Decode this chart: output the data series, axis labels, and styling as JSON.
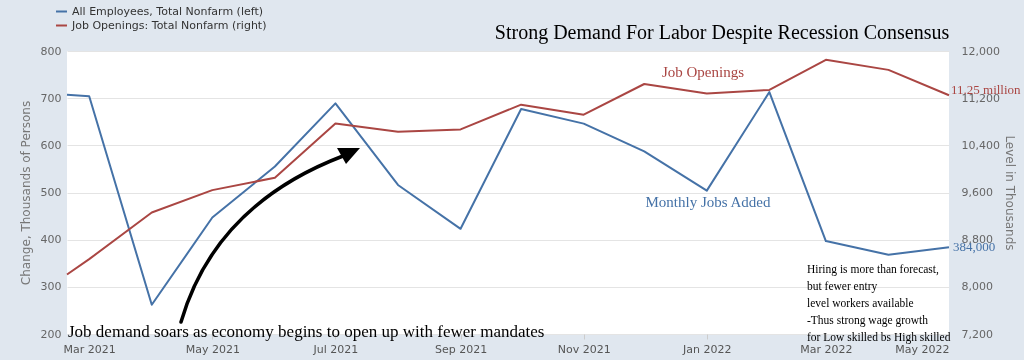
{
  "chart_data": {
    "type": "line",
    "title": "Strong Demand For Labor Despite Recession Consensus",
    "xlabel": null,
    "ylabel": "Change, Thousands of Persons",
    "y2label": "Level in Thousands",
    "x": [
      "2021-02-18",
      "2021-03-01",
      "2021-04-01",
      "2021-05-01",
      "2021-06-01",
      "2021-07-01",
      "2021-08-01",
      "2021-09-01",
      "2021-10-01",
      "2021-11-01",
      "2021-12-01",
      "2022-01-01",
      "2022-02-01",
      "2022-03-01",
      "2022-04-01",
      "2022-05-01"
    ],
    "series": [
      {
        "name": "All Employees, Total Nonfarm (left)",
        "color": "#4572a7",
        "values": [
          707,
          704,
          262,
          447,
          555,
          689,
          516,
          423,
          677,
          646,
          587,
          504,
          713,
          397,
          368,
          384
        ]
      },
      {
        "name": "Job Openings: Total Nonfarm (right)",
        "color": "#aa4643",
        "axis": "y2",
        "values": [
          8210,
          8470,
          9260,
          9640,
          9850,
          10770,
          10630,
          10670,
          11090,
          10920,
          11440,
          11280,
          11340,
          11850,
          11680,
          11250
        ]
      }
    ],
    "xlim": [
      "2021-02-18",
      "2022-05-01"
    ],
    "xticks": [
      {
        "value": "2021-03-01",
        "label": "Mar 2021"
      },
      {
        "value": "2021-05-01",
        "label": "May 2021"
      },
      {
        "value": "2021-07-01",
        "label": "Jul 2021"
      },
      {
        "value": "2021-09-01",
        "label": "Sep 2021"
      },
      {
        "value": "2021-11-01",
        "label": "Nov 2021"
      },
      {
        "value": "2022-01-01",
        "label": "Jan 2022"
      },
      {
        "value": "2022-03-01",
        "label": "Mar 2022"
      },
      {
        "value": "2022-05-01",
        "label": "May 2022"
      }
    ],
    "ylim": [
      200,
      800
    ],
    "yticks": [
      200,
      300,
      400,
      500,
      600,
      700,
      800
    ],
    "y2lim": [
      7200,
      12000
    ],
    "y2ticks": [
      {
        "value": 7200,
        "label": "7,200"
      },
      {
        "value": 8000,
        "label": "8,000"
      },
      {
        "value": 8800,
        "label": "8,800"
      },
      {
        "value": 9600,
        "label": "9,600"
      },
      {
        "value": 10400,
        "label": "10,400"
      },
      {
        "value": 11200,
        "label": "11,200"
      },
      {
        "value": 12000,
        "label": "12,000"
      }
    ],
    "grid": "y",
    "legend": "top left",
    "line_style": "solid",
    "marker": "none",
    "annotations": [
      "Job Openings",
      "Monthly Jobs Added",
      "11.25 million",
      {
        "text": "384,000",
        "x": "2022-05-01",
        "y": 384
      },
      "Job demand soars as economy begins to open up with fewer mandates",
      "Hiring is more than forecast,\nbut fewer entry\nlevel workers available\n-Thus strong wage growth\nfor Low skilled bs High skilled"
    ]
  }
}
